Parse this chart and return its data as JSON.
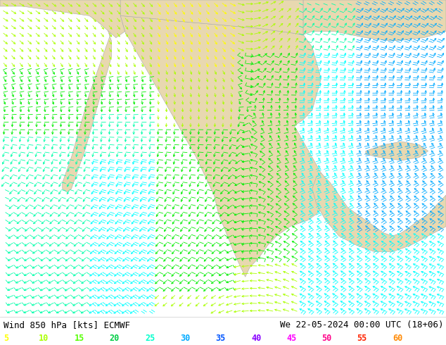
{
  "title_left": "Wind 850 hPa [kts] ECMWF",
  "title_right": "We 22-05-2024 00:00 UTC (18+06)",
  "legend_values": [
    5,
    10,
    15,
    20,
    25,
    30,
    35,
    40,
    45,
    50,
    55,
    60
  ],
  "legend_colors": [
    "#ffff00",
    "#aaff00",
    "#00ee00",
    "#00ffaa",
    "#00ffff",
    "#00aaff",
    "#0055ff",
    "#aa00ff",
    "#ff00ff",
    "#ff0077",
    "#ff2200",
    "#ff8800"
  ],
  "bg_color": "#c8e8f0",
  "ocean_color": "#c8e8f0",
  "land_color": "#e8d8b0",
  "fig_width": 6.34,
  "fig_height": 4.9,
  "dpi": 100,
  "title_fontsize": 9,
  "legend_fontsize": 8.5,
  "arrow_lw": 0.7,
  "arrow_scale": 0.018
}
